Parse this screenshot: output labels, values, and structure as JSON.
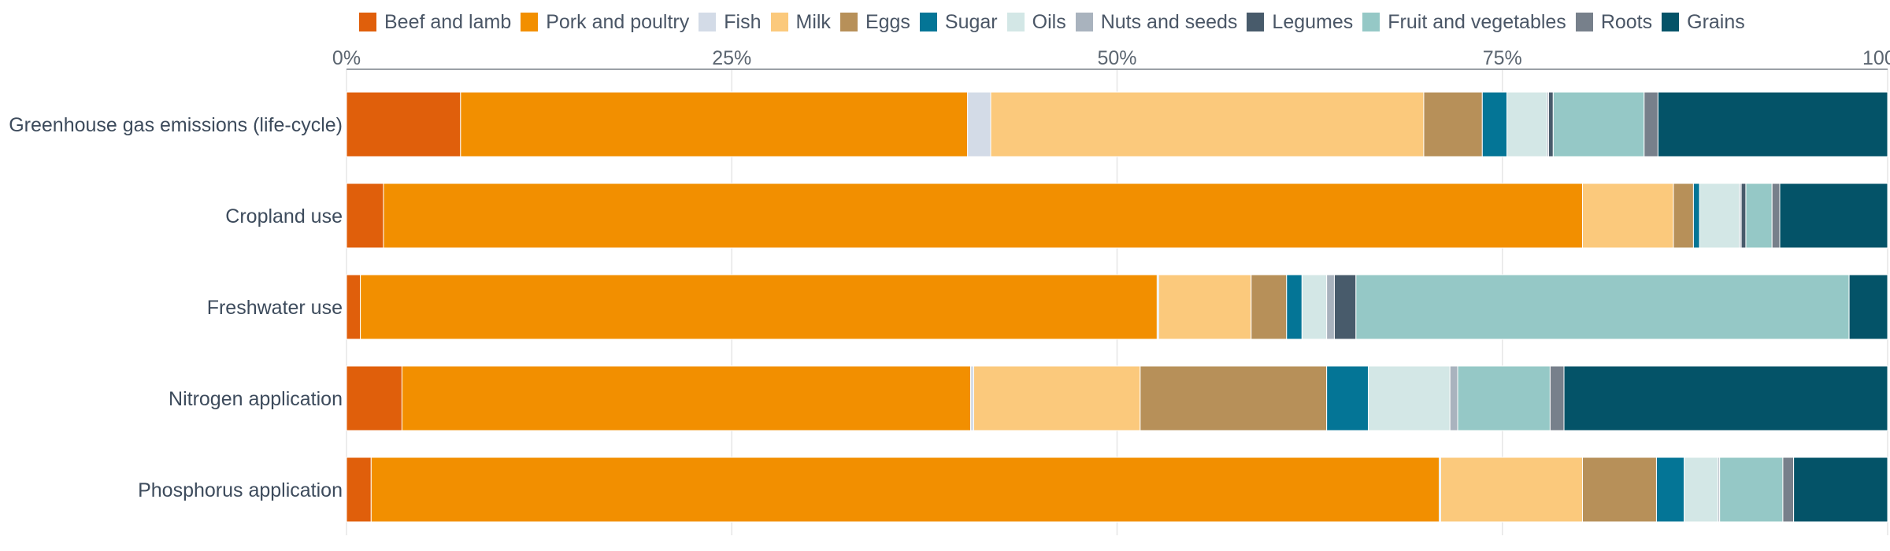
{
  "chart_data": {
    "type": "bar",
    "orientation": "horizontal",
    "stacked": true,
    "categories": [
      "Greenhouse gas emissions (life-cycle)",
      "Cropland use",
      "Freshwater use",
      "Nitrogen application",
      "Phosphorus application"
    ],
    "xlim": [
      0,
      100
    ],
    "x_ticks": [
      "0%",
      "25%",
      "50%",
      "75%",
      "100%"
    ],
    "grid": true,
    "legend_position": "top",
    "series": [
      {
        "name": "Beef and lamb",
        "color": "#e05f0b",
        "values": [
          7.4,
          2.4,
          0.9,
          3.6,
          1.6
        ]
      },
      {
        "name": "Pork and poultry",
        "color": "#f28f00",
        "values": [
          32.9,
          77.8,
          51.7,
          36.9,
          69.3
        ]
      },
      {
        "name": "Fish",
        "color": "#d3dbe7",
        "values": [
          1.5,
          0.0,
          0.1,
          0.2,
          0.1
        ]
      },
      {
        "name": "Milk",
        "color": "#fbc97c",
        "values": [
          28.1,
          5.9,
          6.0,
          10.8,
          9.2
        ]
      },
      {
        "name": "Eggs",
        "color": "#b79059",
        "values": [
          3.8,
          1.3,
          2.3,
          12.1,
          4.8
        ]
      },
      {
        "name": "Sugar",
        "color": "#047596",
        "values": [
          1.6,
          0.4,
          1.0,
          2.7,
          1.8
        ]
      },
      {
        "name": "Oils",
        "color": "#d3e7e6",
        "values": [
          2.6,
          2.6,
          1.6,
          5.3,
          2.2
        ]
      },
      {
        "name": "Nuts and seeds",
        "color": "#a9b3be",
        "values": [
          0.1,
          0.1,
          0.5,
          0.5,
          0.1
        ]
      },
      {
        "name": "Legumes",
        "color": "#485b6b",
        "values": [
          0.3,
          0.3,
          1.4,
          0.0,
          0.0
        ]
      },
      {
        "name": "Fruit and vegetables",
        "color": "#95c8c6",
        "values": [
          5.9,
          1.7,
          32.0,
          6.0,
          4.1
        ]
      },
      {
        "name": "Roots",
        "color": "#77808b",
        "values": [
          0.9,
          0.5,
          0.0,
          0.9,
          0.7
        ]
      },
      {
        "name": "Grains",
        "color": "#045368",
        "values": [
          14.9,
          7.0,
          2.5,
          21.0,
          6.1
        ]
      }
    ]
  }
}
